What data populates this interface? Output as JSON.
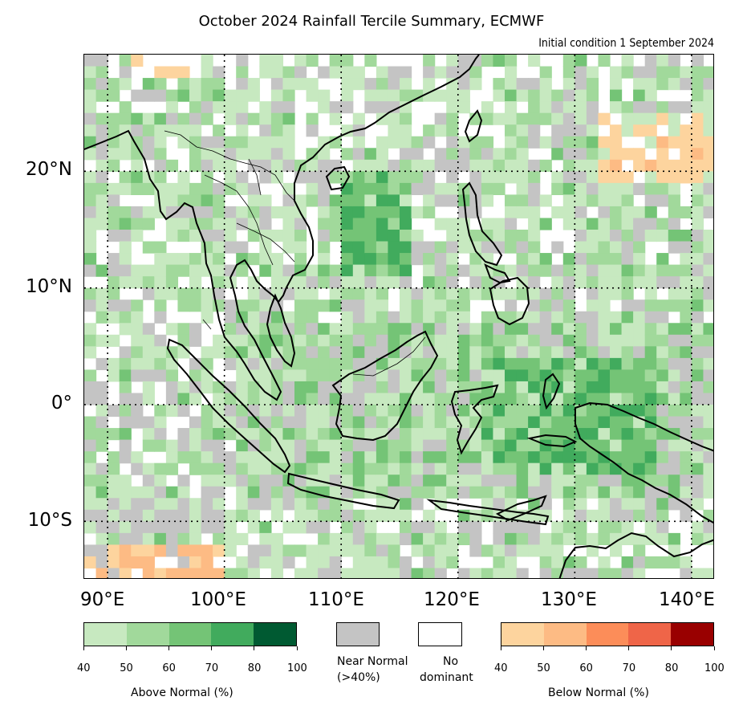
{
  "title": "October 2024 Rainfall Tercile Summary, ECMWF",
  "subtitle": "Initial condition 1 September 2024",
  "map": {
    "lon_range": [
      88,
      142
    ],
    "lat_range": [
      -15,
      30
    ],
    "lat_labels": [
      "20°N",
      "10°N",
      "0°",
      "10°S"
    ],
    "lat_values": [
      20,
      10,
      0,
      -10
    ],
    "lon_labels": [
      "90°E",
      "100°E",
      "110°E",
      "120°E",
      "130°E",
      "140°E"
    ],
    "lon_values": [
      90,
      100,
      110,
      120,
      130,
      140
    ],
    "grid_style": "dotted"
  },
  "legend": {
    "above_normal": {
      "label": "Above Normal (%)",
      "ticks": [
        "40",
        "50",
        "60",
        "70",
        "80",
        "100"
      ],
      "colors": [
        "#c7e9c0",
        "#a1d99b",
        "#74c476",
        "#41ab5d",
        "#005a32"
      ]
    },
    "near_normal": {
      "label_line1": "Near Normal",
      "label_line2": "(>40%)",
      "color": "#c4c4c4"
    },
    "no_dominant": {
      "label_line1": "No",
      "label_line2": "dominant",
      "color": "#ffffff"
    },
    "below_normal": {
      "label": "Below Normal (%)",
      "ticks": [
        "40",
        "50",
        "60",
        "70",
        "80",
        "100"
      ],
      "colors": [
        "#fdd49e",
        "#fdbb84",
        "#fc8d59",
        "#ef6548",
        "#990000"
      ]
    }
  }
}
